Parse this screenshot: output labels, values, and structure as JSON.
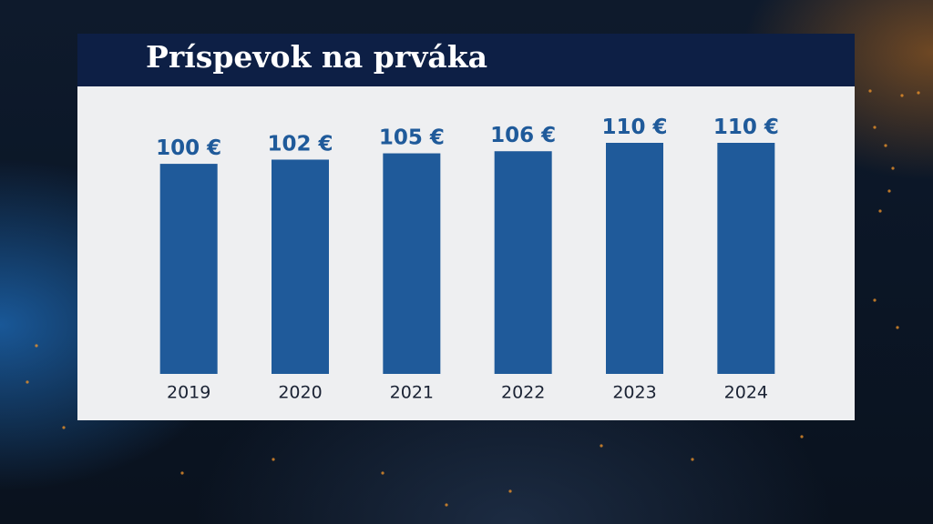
{
  "chart_data": {
    "type": "bar",
    "title": "Príspevok na prváka",
    "categories": [
      "2019",
      "2020",
      "2021",
      "2022",
      "2023",
      "2024"
    ],
    "values": [
      100,
      102,
      105,
      106,
      110,
      110
    ],
    "value_labels": [
      "100 €",
      "102 €",
      "105 €",
      "106 €",
      "110 €",
      "110 €"
    ],
    "color": "#1f5a9a"
  }
}
